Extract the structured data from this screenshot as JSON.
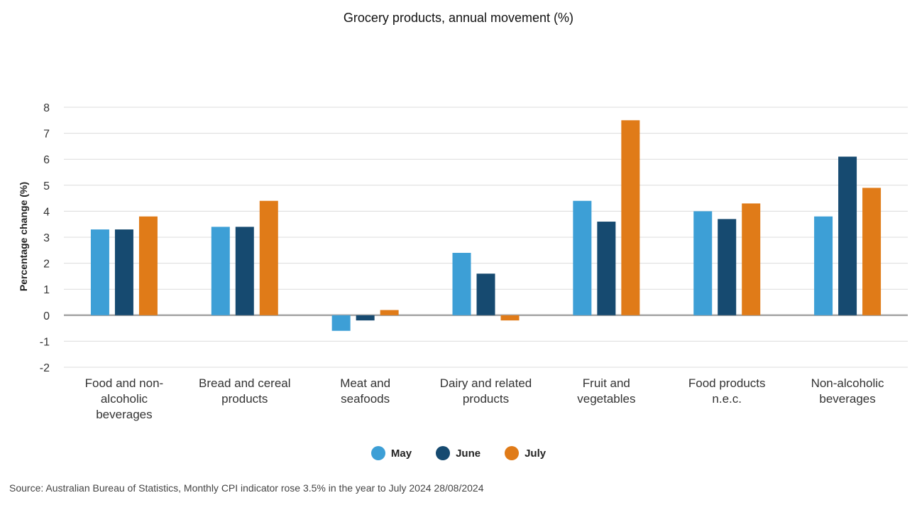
{
  "title": "Grocery products, annual movement (%)",
  "source": "Source: Australian Bureau of Statistics, Monthly CPI indicator rose 3.5% in the year to July 2024 28/08/2024",
  "chart_data": {
    "type": "bar",
    "title": "Grocery products, annual movement (%)",
    "xlabel": "",
    "ylabel": "Percentage change (%)",
    "ylim": [
      -2,
      8
    ],
    "yticks": [
      -2,
      -1,
      0,
      1,
      2,
      3,
      4,
      5,
      6,
      7,
      8
    ],
    "grid": true,
    "legend_position": "bottom",
    "categories": [
      [
        "Food and non-",
        "alcoholic",
        "beverages"
      ],
      [
        "Bread and cereal",
        "products"
      ],
      [
        "Meat and",
        "seafoods"
      ],
      [
        "Dairy and related",
        "products"
      ],
      [
        "Fruit and",
        "vegetables"
      ],
      [
        "Food products",
        "n.e.c."
      ],
      [
        "Non-alcoholic",
        "beverages"
      ]
    ],
    "series": [
      {
        "name": "May",
        "color": "#3d9fd6",
        "values": [
          3.3,
          3.4,
          -0.6,
          2.4,
          4.4,
          4.0,
          3.8
        ]
      },
      {
        "name": "June",
        "color": "#164a70",
        "values": [
          3.3,
          3.4,
          -0.2,
          1.6,
          3.6,
          3.7,
          6.1
        ]
      },
      {
        "name": "July",
        "color": "#e07b18",
        "values": [
          3.8,
          4.4,
          0.2,
          -0.2,
          7.5,
          4.3,
          4.9
        ]
      }
    ]
  }
}
